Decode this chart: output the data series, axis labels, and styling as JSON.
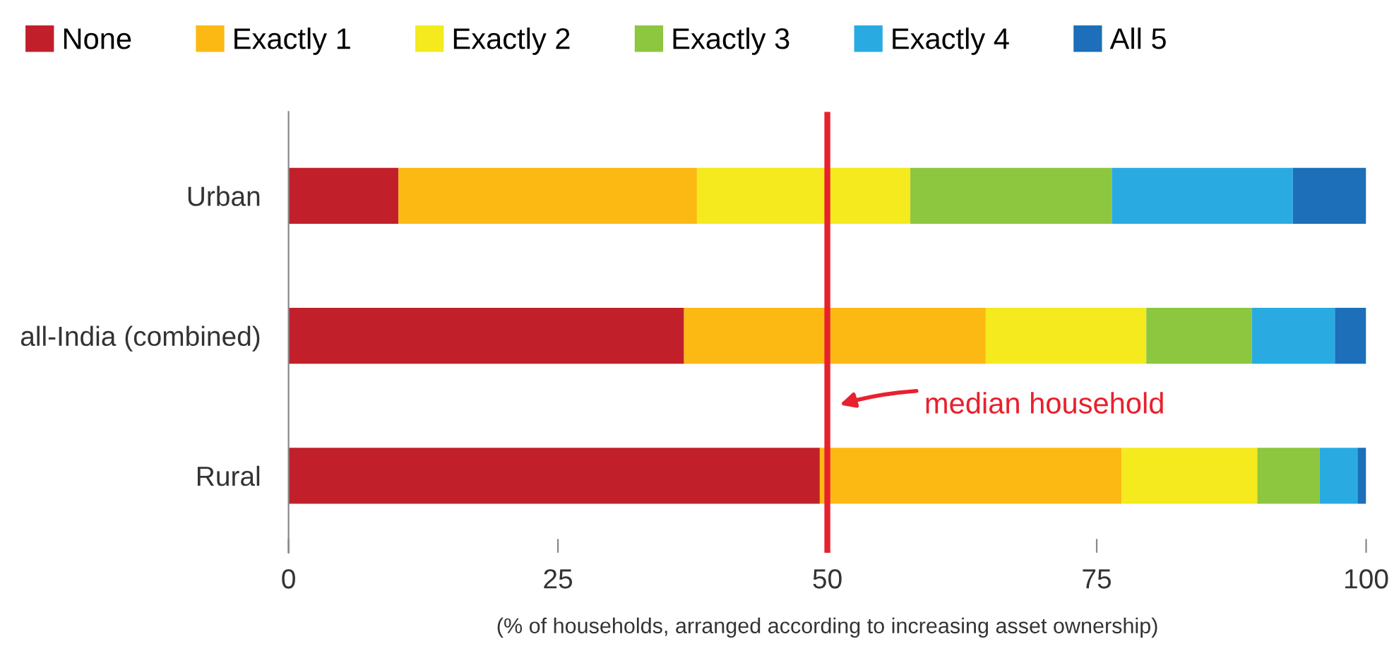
{
  "chart_data": {
    "type": "bar",
    "orientation": "horizontal",
    "stacked": true,
    "categories": [
      "Urban",
      "all-India (combined)",
      "Rural"
    ],
    "series": [
      {
        "name": "None",
        "color": "#c1202b",
        "values": [
          10.2,
          36.7,
          49.3
        ]
      },
      {
        "name": "Exactly 1",
        "color": "#fdb913",
        "values": [
          27.7,
          28.0,
          28.0
        ]
      },
      {
        "name": "Exactly 2",
        "color": "#f4ea1e",
        "values": [
          19.8,
          14.9,
          12.6
        ]
      },
      {
        "name": "Exactly 3",
        "color": "#8dc63f",
        "values": [
          18.7,
          9.8,
          5.8
        ]
      },
      {
        "name": "Exactly 4",
        "color": "#29abe2",
        "values": [
          16.8,
          7.7,
          3.5
        ]
      },
      {
        "name": "All 5",
        "color": "#1c6fb8",
        "values": [
          6.8,
          2.9,
          0.8
        ]
      }
    ],
    "xlim": [
      0,
      100
    ],
    "xticks": [
      0,
      25,
      50,
      75,
      100
    ],
    "xlabel": "(% of households, arranged according to increasing asset ownership)",
    "ref_lines": [
      {
        "axis": "x",
        "value": 50,
        "label": "median household",
        "color": "#e8212e"
      }
    ],
    "grid": false,
    "legend": "top"
  }
}
